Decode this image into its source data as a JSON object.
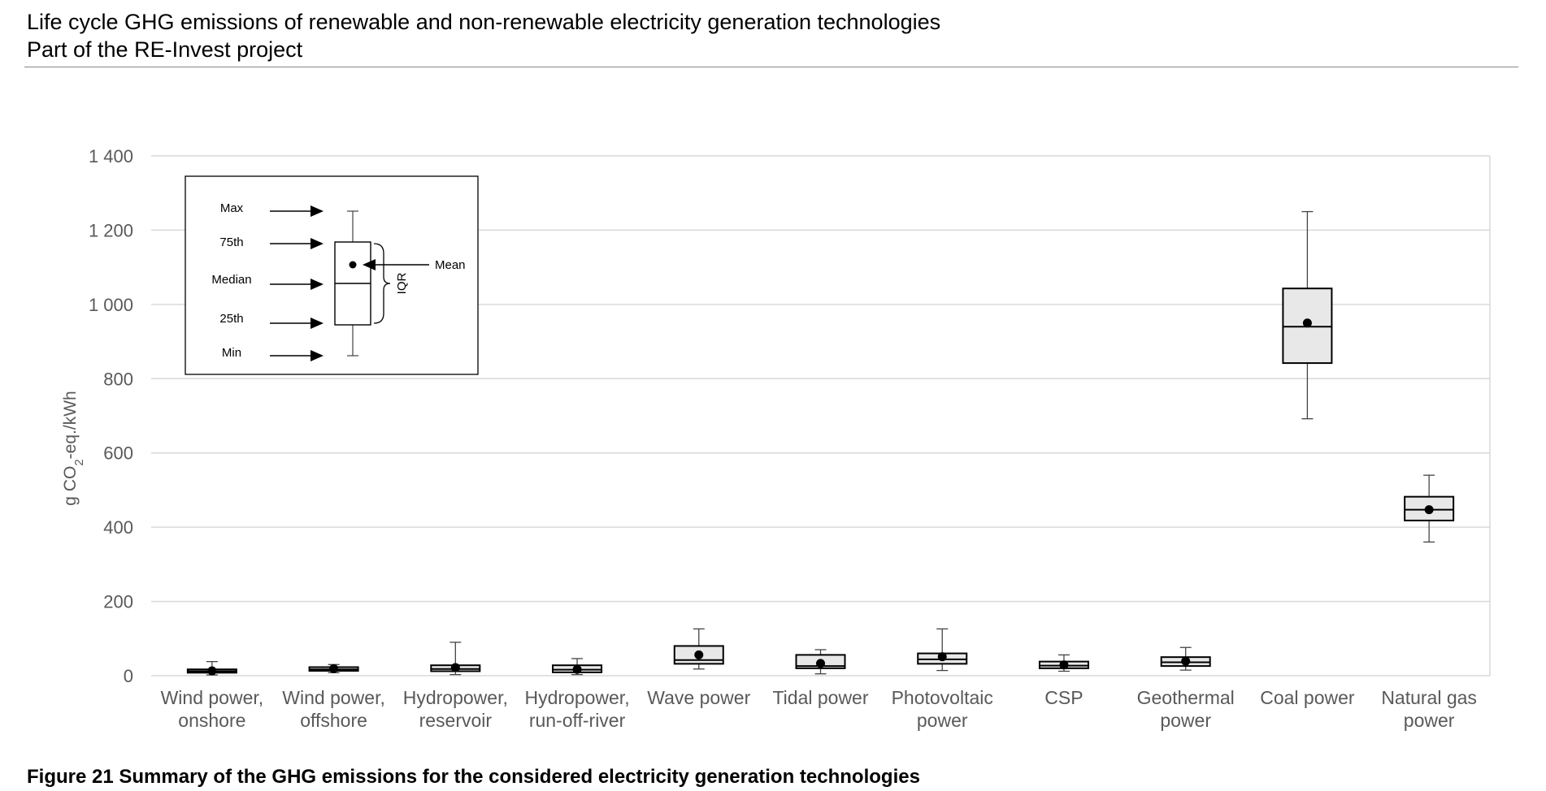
{
  "header": {
    "line1": "Life cycle GHG emissions of renewable and non-renewable electricity generation technologies",
    "line2": "Part of the RE-Invest project"
  },
  "caption": "Figure 21 Summary of the GHG emissions for the considered electricity generation technologies",
  "chart_data": {
    "type": "boxplot",
    "ylabel": "g CO2-eq./kWh",
    "ylabel_subscript": "2",
    "ylim": [
      0,
      1400
    ],
    "yticks": [
      0,
      200,
      400,
      600,
      800,
      1000,
      1200,
      1400
    ],
    "ytick_labels": [
      "0",
      "200",
      "400",
      "600",
      "800",
      "1 000",
      "1 200",
      "1 400"
    ],
    "grid": true,
    "categories": [
      [
        "Wind power,",
        "onshore"
      ],
      [
        "Wind power,",
        "offshore"
      ],
      [
        "Hydropower,",
        "reservoir"
      ],
      [
        "Hydropower,",
        "run-off-river"
      ],
      [
        "Wave power"
      ],
      [
        "Tidal power"
      ],
      [
        "Photovoltaic",
        "power"
      ],
      [
        "CSP"
      ],
      [
        "Geothermal",
        "power"
      ],
      [
        "Coal power"
      ],
      [
        "Natural gas",
        "power"
      ]
    ],
    "boxes": [
      {
        "min": 2,
        "q1": 8,
        "median": 12,
        "q3": 17,
        "max": 38,
        "mean": 13
      },
      {
        "min": 8,
        "q1": 13,
        "median": 17,
        "q3": 23,
        "max": 30,
        "mean": 19
      },
      {
        "min": 3,
        "q1": 12,
        "median": 18,
        "q3": 28,
        "max": 90,
        "mean": 22
      },
      {
        "min": 3,
        "q1": 9,
        "median": 16,
        "q3": 28,
        "max": 46,
        "mean": 17
      },
      {
        "min": 18,
        "q1": 32,
        "median": 42,
        "q3": 80,
        "max": 126,
        "mean": 56
      },
      {
        "min": 5,
        "q1": 20,
        "median": 26,
        "q3": 56,
        "max": 70,
        "mean": 33
      },
      {
        "min": 14,
        "q1": 32,
        "median": 44,
        "q3": 60,
        "max": 126,
        "mean": 51
      },
      {
        "min": 12,
        "q1": 20,
        "median": 27,
        "q3": 38,
        "max": 56,
        "mean": 29
      },
      {
        "min": 15,
        "q1": 26,
        "median": 36,
        "q3": 50,
        "max": 76,
        "mean": 39
      },
      {
        "min": 692,
        "q1": 842,
        "median": 940,
        "q3": 1043,
        "max": 1250,
        "mean": 950
      },
      {
        "min": 360,
        "q1": 418,
        "median": 447,
        "q3": 482,
        "max": 540,
        "mean": 447
      }
    ],
    "legend": {
      "labels": {
        "max": "Max",
        "q3": "75th",
        "median": "Median",
        "q1": "25th",
        "min": "Min",
        "mean": "Mean",
        "iqr": "IQR"
      },
      "position": "top-left"
    },
    "colors": {
      "box_fill": "#e8e8e8",
      "grid": "#d9d9d9",
      "axis_text": "#595959"
    }
  }
}
